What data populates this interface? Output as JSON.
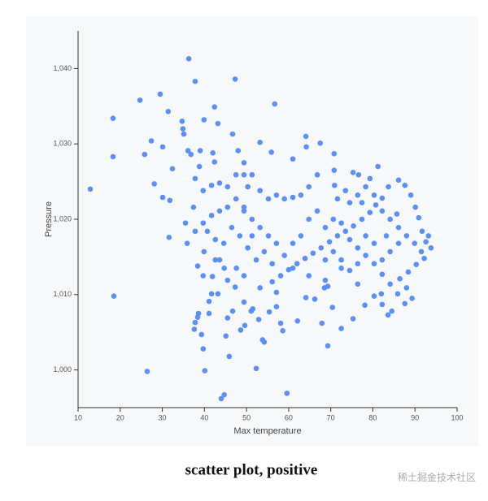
{
  "chart_data": {
    "type": "scatter",
    "x_label": "Max temperature",
    "y_label": "Pressure",
    "color": "#5b8ff9",
    "xlim": [
      10,
      100
    ],
    "xticks": [
      10,
      20,
      30,
      40,
      50,
      60,
      70,
      80,
      90,
      100
    ],
    "ylim": [
      995,
      1045
    ],
    "yticks": [
      {
        "value": 1000,
        "label": "1,000"
      },
      {
        "value": 1010,
        "label": "1,010"
      },
      {
        "value": 1020,
        "label": "1,020"
      },
      {
        "value": 1030,
        "label": "1,030"
      },
      {
        "value": 1040,
        "label": "1,040"
      }
    ],
    "x": [
      12.9,
      18.3,
      18.3,
      18.5,
      24.7,
      26.4,
      29.5,
      36.3,
      37.8,
      47.3,
      56.7,
      25.8,
      27.4,
      28.1,
      30.1,
      31.4,
      31.8,
      30.1,
      31.6,
      32.4,
      34.7,
      34.9,
      35.1,
      36.1,
      36.8,
      39.0,
      39.9,
      42.4,
      43.2,
      42.0,
      42.4,
      46.7,
      48.0,
      49.4,
      53.2,
      55.9,
      61.0,
      64.1,
      64.2,
      67.5,
      70.8,
      70.8,
      81.2,
      76.6,
      38.6,
      38.4,
      37.8,
      37.6,
      39.3,
      39.7,
      40.1,
      44.0,
      44.7,
      45.9,
      41.1,
      45.1,
      52.3,
      59.6,
      51.5,
      53.8,
      54.2,
      55.4,
      57.1,
      58.1,
      58.6,
      62.1,
      64.1,
      66.2,
      68.5,
      69.3,
      70.4,
      67.9,
      69.3,
      72.5,
      75.3,
      78.1,
      82.0,
      83.6,
      84.5,
      85.9,
      87.6,
      89.3,
      49.4,
      51.1,
      49.6,
      52.9,
      48.6,
      46.7,
      45.5,
      47.3,
      43.2,
      41.1,
      41.7,
      39.7,
      41.9,
      38.4,
      39.9,
      42.6,
      44.7,
      47.6,
      93.8,
      92.6,
      91.7,
      90.9,
      90.1,
      89.0,
      87.6,
      86.1,
      83.7,
      82.2,
      80.7,
      79.3,
      77.4,
      75.4,
      73.5,
      71.6,
      69.7,
      67.7,
      65.8,
      63.9,
      62.0,
      60.0,
      58.1,
      56.1,
      92.2,
      90.3,
      88.4,
      86.4,
      84.1,
      82.2,
      80.3,
      78.3,
      76.4,
      74.5,
      72.5,
      74.5,
      76.4,
      78.3,
      80.3,
      82.2,
      84.1,
      86.1,
      88.0,
      89.9,
      86.1,
      84.1,
      82.2,
      80.3,
      78.3,
      76.4,
      74.5,
      72.5,
      70.6,
      68.7,
      70.6,
      68.7,
      66.8,
      64.8,
      62.9,
      61.0,
      59.0,
      57.1,
      55.2,
      53.2,
      51.3,
      49.4,
      47.5,
      45.5,
      43.6,
      41.7,
      39.7,
      37.8,
      35.9,
      40.7,
      42.6,
      44.6,
      46.5,
      48.4,
      50.3,
      52.3,
      54.2,
      56.1,
      51.3,
      53.2,
      55.2,
      57.1,
      59.0,
      61.0,
      62.9,
      64.8,
      66.8,
      49.4,
      50.3,
      45.5,
      43.6,
      39.7,
      37.8,
      38.8,
      37.4,
      35.5,
      41.7,
      47.5,
      49.4,
      51.3,
      43.6,
      45.5,
      49.4,
      53.2,
      57.1,
      61.0,
      64.8,
      68.7,
      72.5,
      76.4,
      80.3,
      82.2,
      88.0,
      91.5,
      93.2,
      85.7,
      83.2,
      77.4,
      73.5,
      71.6,
      79.3,
      75.3,
      70.9
    ],
    "values": [
      1024.0,
      1033.4,
      1028.3,
      1009.8,
      1035.8,
      999.8,
      1036.6,
      1041.3,
      1038.3,
      1038.6,
      1035.3,
      1028.6,
      1030.4,
      1024.7,
      1029.6,
      1034.3,
      1022.5,
      1022.9,
      1017.6,
      1026.7,
      1033.0,
      1032.0,
      1031.3,
      1029.1,
      1028.6,
      1029.1,
      1033.2,
      1034.9,
      1032.7,
      1028.8,
      1027.6,
      1031.3,
      1029.1,
      1027.5,
      1030.2,
      1028.9,
      1028.0,
      1031.0,
      1029.6,
      1030.1,
      1028.7,
      1026.5,
      1027.0,
      1025.9,
      1007.5,
      1007.0,
      1006.3,
      1005.4,
      1004.7,
      1002.8,
      999.9,
      996.2,
      996.7,
      1001.8,
      1007.5,
      1004.5,
      1000.2,
      996.9,
      1008.1,
      1004.0,
      1003.7,
      1007.7,
      1008.4,
      1006.2,
      1005.2,
      1006.5,
      1009.6,
      1009.4,
      1010.9,
      1011.1,
      1008.3,
      1006.2,
      1003.2,
      1005.5,
      1006.8,
      1008.6,
      1010.1,
      1007.3,
      1007.8,
      1010.1,
      1008.8,
      1009.5,
      1009.0,
      1007.8,
      1005.9,
      1006.7,
      1005.3,
      1007.8,
      1006.9,
      1011.0,
      1010.1,
      1009.1,
      1010.1,
      1012.5,
      1012.4,
      1013.8,
      1015.7,
      1014.6,
      1013.5,
      1013.5,
      1016.2,
      1017.0,
      1018.4,
      1020.2,
      1021.6,
      1023.2,
      1024.5,
      1025.2,
      1024.3,
      1022.8,
      1021.9,
      1020.9,
      1020.0,
      1019.1,
      1018.4,
      1017.8,
      1017.0,
      1016.2,
      1015.5,
      1014.8,
      1014.1,
      1013.3,
      1012.5,
      1011.7,
      1014.8,
      1014.0,
      1013.0,
      1012.1,
      1011.4,
      1012.7,
      1014.1,
      1015.2,
      1016.2,
      1017.3,
      1019.5,
      1022.2,
      1023.2,
      1024.3,
      1023.2,
      1021.1,
      1020.0,
      1018.9,
      1017.8,
      1016.8,
      1016.8,
      1015.7,
      1014.6,
      1016.8,
      1017.8,
      1014.1,
      1013.2,
      1014.6,
      1015.7,
      1014.6,
      1020.0,
      1018.9,
      1021.1,
      1020.0,
      1017.8,
      1016.8,
      1015.2,
      1016.8,
      1017.8,
      1018.9,
      1020.0,
      1021.6,
      1022.7,
      1021.6,
      1021.1,
      1020.5,
      1019.5,
      1018.4,
      1016.8,
      1018.4,
      1017.3,
      1016.8,
      1018.9,
      1017.8,
      1016.2,
      1014.6,
      1015.7,
      1014.1,
      1025.9,
      1023.8,
      1022.7,
      1023.2,
      1022.7,
      1022.9,
      1023.2,
      1024.3,
      1025.9,
      1025.9,
      1024.3,
      1024.3,
      1024.8,
      1023.8,
      1025.4,
      1027.0,
      1021.6,
      1019.5,
      1024.5,
      1025.9,
      1021.1,
      1017.8,
      1014.6,
      1011.9,
      1012.5,
      1010.9,
      1010.3,
      1013.5,
      1012.5,
      1011.9,
      1013.5,
      1011.4,
      1009.8,
      1008.7,
      1010.9,
      1015.7,
      1017.8,
      1020.7,
      1017.8,
      1022.2,
      1023.8,
      1022.7,
      1025.4,
      1026.2,
      1024.5
    ]
  },
  "caption": "scatter plot, positive",
  "watermark": "稀土掘金技术社区"
}
